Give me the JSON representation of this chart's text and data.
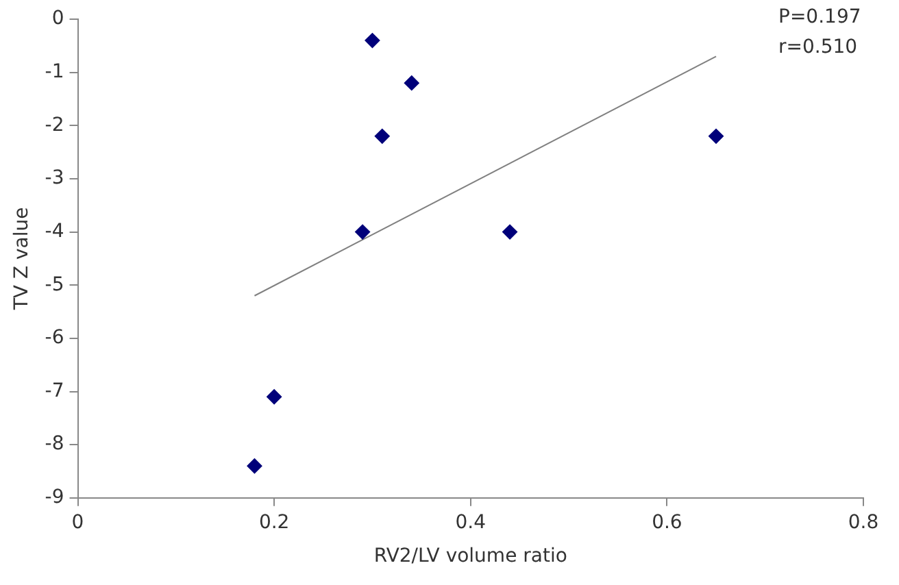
{
  "chart_data": {
    "type": "scatter",
    "xlabel": "RV2/LV volume ratio",
    "ylabel": "TV Z value",
    "xlim": [
      0,
      0.8
    ],
    "xticks": [
      0,
      0.2,
      0.4,
      0.6,
      0.8
    ],
    "ylim": [
      -9,
      0
    ],
    "yticks": [
      -9,
      -8,
      -7,
      -6,
      -5,
      -4,
      -3,
      -2,
      -1,
      0
    ],
    "grid": false,
    "legend": false,
    "series": [
      {
        "type": "scatter",
        "marker": "diamond",
        "color": "#00007a",
        "x": [
          0.18,
          0.2,
          0.29,
          0.3,
          0.31,
          0.34,
          0.44,
          0.65
        ],
        "values": [
          -8.4,
          -7.1,
          -4.0,
          -0.4,
          -2.2,
          -1.2,
          -4.0,
          -2.2
        ]
      },
      {
        "type": "line",
        "marker": "none",
        "color": "#808080",
        "x": [
          0.18,
          0.65
        ],
        "values": [
          -5.2,
          -0.7
        ]
      }
    ],
    "annotations": [
      "P=0.197",
      "r=0.510"
    ]
  }
}
